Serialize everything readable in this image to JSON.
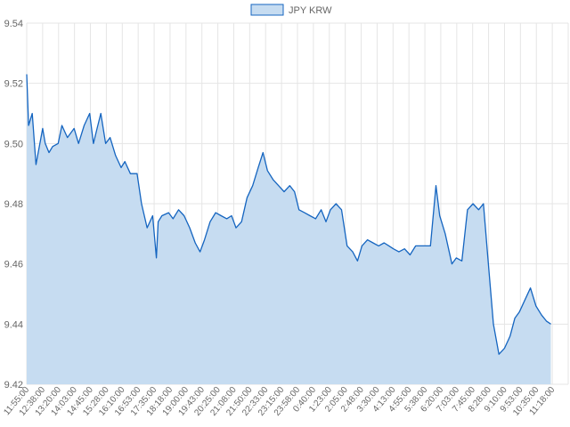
{
  "chart_data": {
    "type": "area",
    "title": "",
    "xlabel": "",
    "ylabel": "",
    "ylim": [
      9.42,
      9.54
    ],
    "yticks": [
      "9.42",
      "9.44",
      "9.46",
      "9.48",
      "9.50",
      "9.52",
      "9.54"
    ],
    "grid": true,
    "legend_placement": "top-center",
    "colors": {
      "line": "#1565c0",
      "fill": "#c6dcf1",
      "grid": "#e5e5e5",
      "text": "#666666"
    },
    "x_tick_labels": [
      "11:55:00",
      "12:38:00",
      "13:20:00",
      "14:03:00",
      "14:45:00",
      "15:28:00",
      "16:10:00",
      "16:53:00",
      "17:35:00",
      "18:18:00",
      "19:00:00",
      "19:43:00",
      "20:25:00",
      "21:08:00",
      "21:50:00",
      "22:33:00",
      "23:15:00",
      "23:58:00",
      "0:40:00",
      "1:23:00",
      "2:05:00",
      "2:48:00",
      "3:30:00",
      "4:13:00",
      "4:55:00",
      "5:38:00",
      "6:20:00",
      "7:03:00",
      "7:45:00",
      "8:28:00",
      "9:10:00",
      "9:53:00",
      "10:35:00",
      "11:18:00"
    ],
    "series": [
      {
        "name": "JPY KRW",
        "x": [
          "11:55:00",
          "12:00:00",
          "12:10:00",
          "12:20:00",
          "12:38:00",
          "12:45:00",
          "12:55:00",
          "13:05:00",
          "13:20:00",
          "13:30:00",
          "13:45:00",
          "14:03:00",
          "14:15:00",
          "14:30:00",
          "14:45:00",
          "14:55:00",
          "15:05:00",
          "15:15:00",
          "15:28:00",
          "15:40:00",
          "15:55:00",
          "16:10:00",
          "16:20:00",
          "16:35:00",
          "16:53:00",
          "17:05:00",
          "17:20:00",
          "17:35:00",
          "17:45:00",
          "17:50:00",
          "18:00:00",
          "18:18:00",
          "18:30:00",
          "18:45:00",
          "19:00:00",
          "19:15:00",
          "19:30:00",
          "19:43:00",
          "19:55:00",
          "20:10:00",
          "20:25:00",
          "20:40:00",
          "20:55:00",
          "21:08:00",
          "21:20:00",
          "21:35:00",
          "21:50:00",
          "22:05:00",
          "22:20:00",
          "22:33:00",
          "22:45:00",
          "23:00:00",
          "23:15:00",
          "23:30:00",
          "23:45:00",
          "23:58:00",
          "0:10:00",
          "0:25:00",
          "0:40:00",
          "0:55:00",
          "1:10:00",
          "1:23:00",
          "1:35:00",
          "1:50:00",
          "2:05:00",
          "2:20:00",
          "2:35:00",
          "2:48:00",
          "3:00:00",
          "3:15:00",
          "3:30:00",
          "3:45:00",
          "4:00:00",
          "4:13:00",
          "4:25:00",
          "4:40:00",
          "4:55:00",
          "5:10:00",
          "5:25:00",
          "5:38:00",
          "5:50:00",
          "6:05:00",
          "6:20:00",
          "6:30:00",
          "6:45:00",
          "7:03:00",
          "7:15:00",
          "7:30:00",
          "7:45:00",
          "8:00:00",
          "8:15:00",
          "8:28:00",
          "8:40:00",
          "8:55:00",
          "9:10:00",
          "9:25:00",
          "9:40:00",
          "9:53:00",
          "10:05:00",
          "10:20:00",
          "10:35:00",
          "10:50:00",
          "11:05:00",
          "11:18:00",
          "11:30:00"
        ],
        "values": [
          9.523,
          9.506,
          9.51,
          9.493,
          9.505,
          9.5,
          9.497,
          9.499,
          9.5,
          9.506,
          9.502,
          9.505,
          9.5,
          9.506,
          9.51,
          9.5,
          9.505,
          9.51,
          9.5,
          9.502,
          9.496,
          9.492,
          9.494,
          9.49,
          9.49,
          9.48,
          9.472,
          9.476,
          9.462,
          9.474,
          9.476,
          9.477,
          9.475,
          9.478,
          9.476,
          9.472,
          9.467,
          9.464,
          9.468,
          9.474,
          9.477,
          9.476,
          9.475,
          9.476,
          9.472,
          9.474,
          9.482,
          9.486,
          9.492,
          9.497,
          9.491,
          9.488,
          9.486,
          9.484,
          9.486,
          9.484,
          9.478,
          9.477,
          9.476,
          9.475,
          9.478,
          9.474,
          9.478,
          9.48,
          9.478,
          9.466,
          9.464,
          9.461,
          9.466,
          9.468,
          9.467,
          9.466,
          9.467,
          9.466,
          9.465,
          9.464,
          9.465,
          9.463,
          9.466,
          9.466,
          9.466,
          9.466,
          9.486,
          9.476,
          9.47,
          9.46,
          9.462,
          9.461,
          9.478,
          9.48,
          9.478,
          9.48,
          9.462,
          9.44,
          9.43,
          9.432,
          9.436,
          9.442,
          9.444,
          9.448,
          9.452,
          9.446,
          9.443,
          9.441,
          9.44
        ]
      }
    ]
  }
}
